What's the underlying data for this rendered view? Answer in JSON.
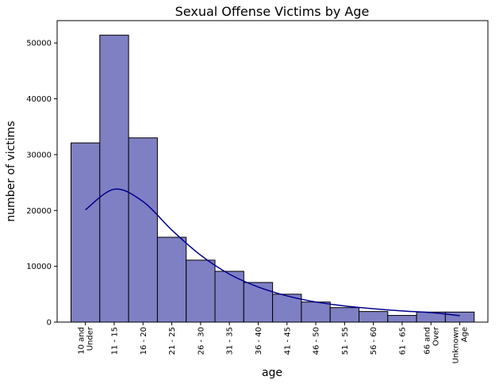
{
  "chart_data": {
    "type": "bar",
    "title": "Sexual Offense Victims by Age",
    "xlabel": "age",
    "ylabel": "number of victims",
    "categories": [
      [
        "10 and",
        "Under"
      ],
      [
        "11 - 15"
      ],
      [
        "16 - 20"
      ],
      [
        "21 - 25"
      ],
      [
        "26 - 30"
      ],
      [
        "31 - 35"
      ],
      [
        "36 - 40"
      ],
      [
        "41 - 45"
      ],
      [
        "46 - 50"
      ],
      [
        "51 - 55"
      ],
      [
        "56 - 60"
      ],
      [
        "61 - 65"
      ],
      [
        "66 and",
        "Over"
      ],
      [
        "Unknown",
        "Age"
      ]
    ],
    "values": [
      32100,
      51400,
      33000,
      15200,
      11100,
      9100,
      7100,
      5000,
      3600,
      2600,
      1900,
      1200,
      1800,
      1800
    ],
    "kde": [
      20100,
      23800,
      21600,
      16500,
      12000,
      8600,
      6300,
      4700,
      3600,
      2900,
      2400,
      2000,
      1700,
      1150
    ],
    "ylim": [
      0,
      54000
    ],
    "yticks": [
      0,
      10000,
      20000,
      30000,
      40000,
      50000
    ],
    "grid": false,
    "colors": {
      "bar_fill": "#7f7fc4",
      "bar_edge": "#000000",
      "kde_line": "#00008b"
    }
  }
}
